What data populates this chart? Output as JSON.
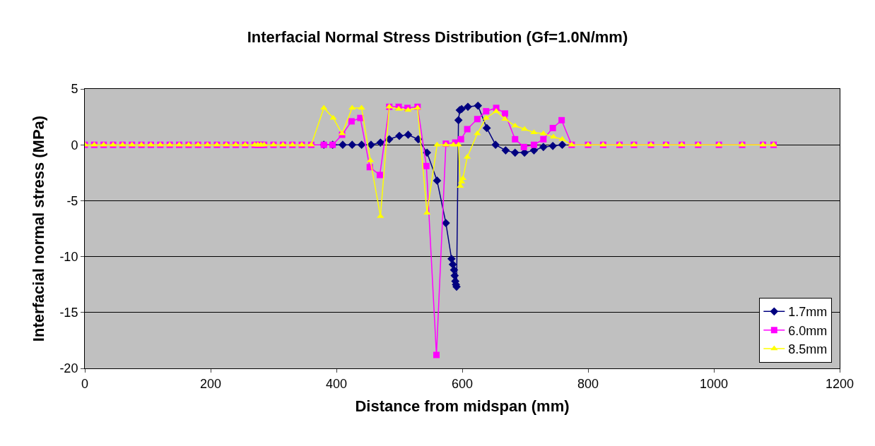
{
  "chart_data": {
    "type": "line",
    "title": "Interfacial Normal Stress Distribution (Gf=1.0N/mm)",
    "xlabel": "Distance from midspan (mm)",
    "ylabel": "Interfacial normal stress (MPa)",
    "xlim": [
      0,
      1200
    ],
    "xticks": [
      0,
      200,
      400,
      600,
      800,
      1000,
      1200
    ],
    "ylim": [
      -20,
      5
    ],
    "yticks": [
      -20,
      -15,
      -10,
      -5,
      0,
      5
    ],
    "grid": "y",
    "legend": "bottom right",
    "series": [
      {
        "name": "1.7mm",
        "color": "#000080",
        "marker": "diamond",
        "x": [
          380,
          394,
          410,
          425,
          440,
          455,
          470,
          484,
          500,
          514,
          530,
          544,
          560,
          574,
          583,
          585,
          587,
          588,
          589,
          590,
          591,
          594,
          596,
          599,
          609,
          625,
          639,
          653,
          669,
          684,
          699,
          714,
          729,
          744,
          759
        ],
        "values": [
          0,
          0,
          0,
          0,
          0,
          0,
          0.2,
          0.5,
          0.8,
          0.9,
          0.5,
          -0.7,
          -3.2,
          -7.0,
          -10.2,
          -10.7,
          -11.2,
          -11.7,
          -12.2,
          -12.5,
          -12.7,
          2.2,
          3.1,
          3.2,
          3.4,
          3.5,
          1.5,
          0,
          -0.5,
          -0.7,
          -0.7,
          -0.5,
          -0.2,
          -0.1,
          0
        ]
      },
      {
        "name": "6.0mm",
        "color": "#ff00ff",
        "marker": "square",
        "x": [
          0,
          15,
          30,
          45,
          60,
          75,
          90,
          105,
          120,
          135,
          150,
          165,
          180,
          195,
          210,
          225,
          240,
          255,
          270,
          275,
          280,
          285,
          300,
          315,
          330,
          345,
          360,
          380,
          394,
          409,
          424,
          438,
          453,
          469,
          484,
          499,
          513,
          529,
          543,
          559,
          574,
          589,
          598,
          608,
          624,
          638,
          654,
          668,
          684,
          698,
          714,
          729,
          744,
          758,
          774,
          800,
          824,
          850,
          873,
          900,
          924,
          949,
          975,
          1008,
          1045,
          1078,
          1095
        ],
        "values": [
          0,
          0,
          0,
          0,
          0,
          0,
          0,
          0,
          0,
          0,
          0,
          0,
          0,
          0,
          0,
          0,
          0,
          0,
          0,
          0,
          0,
          0,
          0,
          0,
          0,
          0,
          0,
          0,
          0,
          0.9,
          2.1,
          2.4,
          -2.0,
          -2.7,
          3.4,
          3.4,
          3.3,
          3.4,
          -1.9,
          -18.8,
          0.1,
          0.2,
          0.5,
          1.4,
          2.3,
          3.0,
          3.3,
          2.8,
          0.5,
          -0.2,
          0,
          0.5,
          1.5,
          2.2,
          0,
          0,
          0,
          0,
          0,
          0,
          0,
          0,
          0,
          0,
          0,
          0,
          0
        ]
      },
      {
        "name": "8.5mm",
        "color": "#ffff00",
        "marker": "triangle",
        "x": [
          0,
          15,
          30,
          45,
          60,
          75,
          90,
          105,
          120,
          135,
          150,
          165,
          180,
          195,
          210,
          225,
          240,
          255,
          270,
          275,
          280,
          285,
          300,
          315,
          330,
          345,
          360,
          380,
          395,
          409,
          425,
          440,
          454,
          470,
          484,
          499,
          514,
          529,
          544,
          560,
          574,
          586,
          594,
          597,
          599,
          601,
          608,
          624,
          638,
          654,
          668,
          684,
          699,
          714,
          729,
          745,
          759,
          774,
          800,
          824,
          850,
          873,
          900,
          924,
          949,
          975,
          1008,
          1045,
          1078,
          1095
        ],
        "values": [
          0,
          0,
          0,
          0,
          0,
          0,
          0,
          0,
          0,
          0,
          0,
          0,
          0,
          0,
          0,
          0,
          0,
          0,
          0,
          0,
          0,
          0,
          0,
          0,
          0,
          0,
          0,
          3.3,
          2.4,
          1.0,
          3.3,
          3.3,
          -1.4,
          -6.4,
          3.4,
          3.2,
          3.1,
          3.3,
          -6.1,
          0,
          0,
          0,
          0,
          -3.7,
          -3.3,
          -3.0,
          -1.1,
          1.0,
          2.4,
          3.0,
          2.3,
          1.7,
          1.4,
          1.1,
          1.0,
          0.7,
          0.5,
          0,
          0,
          0,
          0,
          0,
          0,
          0,
          0,
          0,
          0,
          0,
          0,
          0
        ]
      }
    ]
  }
}
